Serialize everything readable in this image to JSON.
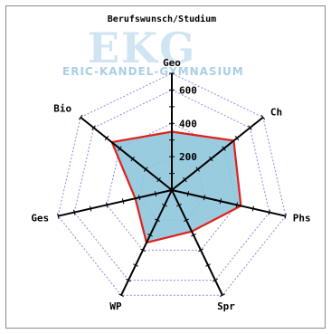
{
  "logo": {
    "big_text": "EKG",
    "school_name": "ERIC-KANDEL-GYMNASIUM"
  },
  "chart_data": {
    "type": "radar",
    "title": "Berufswunsch/Studium",
    "axes": [
      "Geo",
      "Ch",
      "Phs",
      "Spr",
      "WP",
      "Ges",
      "Bio"
    ],
    "tick_labels": [
      "200",
      "400",
      "600"
    ],
    "ticks": [
      200,
      400,
      600
    ],
    "rmax": 700,
    "minor_step": 100,
    "values": [
      350,
      475,
      425,
      275,
      350,
      225,
      460
    ],
    "grid": true,
    "colors": {
      "fill": "#8ec6dc",
      "outline": "#e0201c",
      "axis": "#000000",
      "grid": "#8a8ad8"
    }
  }
}
